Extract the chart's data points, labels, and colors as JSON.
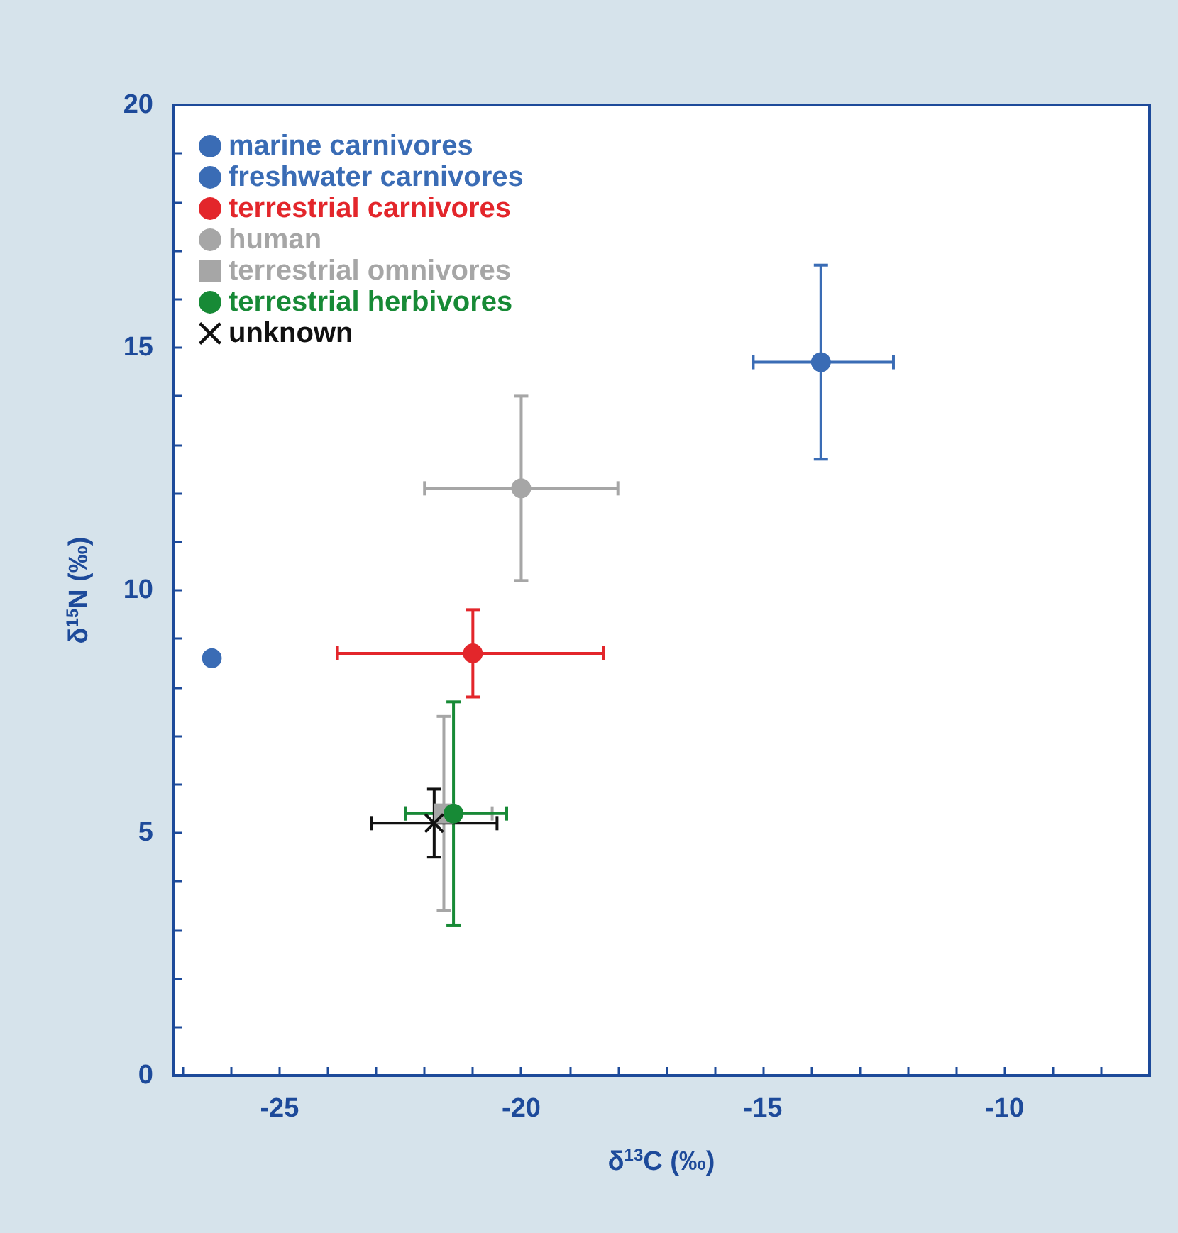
{
  "chart_data": {
    "type": "scatter",
    "xlabel": "δ$^{13}$C (‰)",
    "ylabel": "δ$^{15}$N (‰)",
    "xlim": [
      -27.2,
      -7
    ],
    "ylim": [
      0,
      20
    ],
    "xticks": [
      {
        "value": -27,
        "label": null
      },
      {
        "value": -26,
        "label": null
      },
      -25,
      {
        "value": -24,
        "label": null
      },
      {
        "value": -23,
        "label": null
      },
      {
        "value": -22,
        "label": null
      },
      {
        "value": -21,
        "label": null
      },
      -20,
      {
        "value": -19,
        "label": null
      },
      {
        "value": -18,
        "label": null
      },
      {
        "value": -17,
        "label": null
      },
      {
        "value": -16,
        "label": null
      },
      -15,
      {
        "value": -14,
        "label": null
      },
      {
        "value": -13,
        "label": null
      },
      {
        "value": -12,
        "label": null
      },
      {
        "value": -11,
        "label": null
      },
      -10,
      {
        "value": -9,
        "label": null
      },
      {
        "value": -8,
        "label": null
      }
    ],
    "yticks": [
      0,
      {
        "value": 1,
        "label": null
      },
      {
        "value": 2,
        "label": null
      },
      {
        "value": 3,
        "label": null
      },
      {
        "value": 4,
        "label": null
      },
      5,
      {
        "value": 6,
        "label": null
      },
      {
        "value": 7,
        "label": null
      },
      {
        "value": 8,
        "label": null
      },
      {
        "value": 9,
        "label": null
      },
      10,
      {
        "value": 11,
        "label": null
      },
      {
        "value": 12,
        "label": null
      },
      {
        "value": 13,
        "label": null
      },
      {
        "value": 14,
        "label": null
      },
      15,
      {
        "value": 16,
        "label": null
      },
      {
        "value": 17,
        "label": null
      },
      {
        "value": 18,
        "label": null
      },
      {
        "value": 19,
        "label": null
      },
      20
    ],
    "legend": "top left",
    "series": [
      {
        "name": "marine carnivores",
        "color": "#3a6cb5",
        "marker": "circle",
        "x": [
          -13.8
        ],
        "values": [
          14.7
        ],
        "errors": [
          [
            12.7,
            16.7
          ]
        ],
        "xerrors": [
          [
            -15.2,
            -12.3
          ]
        ]
      },
      {
        "name": "freshwater carnivores",
        "color": "#3a6cb5",
        "marker": "circle",
        "x": [
          -26.4
        ],
        "values": [
          8.6
        ]
      },
      {
        "name": "terrestrial carnivores",
        "color": "#e3262b",
        "marker": "circle",
        "x": [
          -21.0
        ],
        "values": [
          8.7
        ],
        "errors": [
          [
            7.8,
            9.6
          ]
        ],
        "xerrors": [
          [
            -23.8,
            -18.3
          ]
        ]
      },
      {
        "name": "human",
        "color": "#a6a6a6",
        "marker": "circle",
        "x": [
          -20.0
        ],
        "values": [
          12.1
        ],
        "errors": [
          [
            10.2,
            14.0
          ]
        ],
        "xerrors": [
          [
            -22.0,
            -18.0
          ]
        ]
      },
      {
        "name": "terrestrial omnivores",
        "color": "#a6a6a6",
        "marker": "square",
        "x": [
          -21.6
        ],
        "values": [
          5.4
        ],
        "errors": [
          [
            3.4,
            7.4
          ]
        ],
        "xerrors": [
          [
            -22.4,
            -20.6
          ]
        ]
      },
      {
        "name": "terrestrial herbivores",
        "color": "#178a36",
        "marker": "circle",
        "x": [
          -21.4
        ],
        "values": [
          5.4
        ],
        "errors": [
          [
            3.1,
            7.7
          ]
        ],
        "xerrors": [
          [
            -22.4,
            -20.3
          ]
        ]
      },
      {
        "name": "unknown",
        "color": "#111111",
        "marker": "cross",
        "x": [
          -21.8
        ],
        "values": [
          5.2
        ],
        "errors": [
          [
            4.5,
            5.9
          ]
        ],
        "xerrors": [
          [
            -23.1,
            -20.5
          ]
        ]
      }
    ]
  }
}
